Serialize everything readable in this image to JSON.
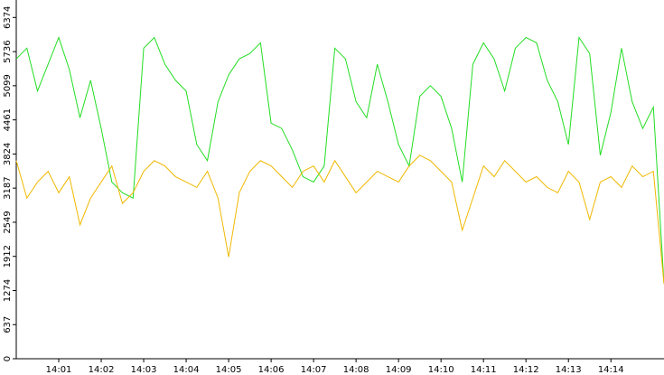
{
  "chart_data": {
    "type": "line",
    "x": [
      0,
      0.25,
      0.5,
      0.75,
      1,
      1.25,
      1.5,
      1.75,
      2,
      2.25,
      2.5,
      2.75,
      3,
      3.25,
      3.5,
      3.75,
      4,
      4.25,
      4.5,
      4.75,
      5,
      5.25,
      5.5,
      5.75,
      6,
      6.25,
      6.5,
      6.75,
      7,
      7.25,
      7.5,
      7.75,
      8,
      8.25,
      8.5,
      8.75,
      9,
      9.25,
      9.5,
      9.75,
      10,
      10.25,
      10.5,
      10.75,
      11,
      11.25,
      11.5,
      11.75,
      12,
      12.25,
      12.5,
      12.75,
      13,
      13.25,
      13.5,
      13.75,
      14,
      14.25,
      14.5,
      14.75,
      15,
      15.25
    ],
    "series": [
      {
        "color": "#22dd22",
        "values": [
          5600,
          5800,
          5000,
          5500,
          6000,
          5400,
          4500,
          5200,
          4300,
          3300,
          3100,
          3000,
          5800,
          6000,
          5500,
          5200,
          5000,
          4000,
          3700,
          4800,
          5300,
          5600,
          5700,
          5900,
          4400,
          4300,
          3900,
          3400,
          3300,
          3600,
          5800,
          5600,
          4800,
          4500,
          5500,
          4800,
          4000,
          3600,
          4900,
          5100,
          4900,
          4300,
          3300,
          5500,
          5900,
          5600,
          5000,
          5800,
          6000,
          5900,
          5200,
          4800,
          4000,
          6000,
          5700,
          3800,
          4600,
          5800,
          4800,
          4300,
          4700,
          1400
        ]
      },
      {
        "color": "#f0b800",
        "values": [
          3700,
          3000,
          3300,
          3500,
          3100,
          3400,
          2500,
          3000,
          3300,
          3600,
          2900,
          3100,
          3500,
          3700,
          3600,
          3400,
          3300,
          3200,
          3500,
          3000,
          1900,
          3100,
          3500,
          3700,
          3600,
          3400,
          3200,
          3500,
          3600,
          3300,
          3700,
          3400,
          3100,
          3300,
          3500,
          3400,
          3300,
          3600,
          3800,
          3700,
          3500,
          3300,
          2400,
          3000,
          3600,
          3400,
          3700,
          3500,
          3300,
          3400,
          3200,
          3100,
          3500,
          3300,
          2600,
          3300,
          3400,
          3200,
          3600,
          3400,
          3500,
          1400
        ]
      }
    ],
    "xlim": [
      0,
      15.25
    ],
    "xticks": [
      {
        "value": 1,
        "label": "14:01"
      },
      {
        "value": 2,
        "label": "14:02"
      },
      {
        "value": 3,
        "label": "14:03"
      },
      {
        "value": 4,
        "label": "14:04"
      },
      {
        "value": 5,
        "label": "14:05"
      },
      {
        "value": 6,
        "label": "14:06"
      },
      {
        "value": 7,
        "label": "14:07"
      },
      {
        "value": 8,
        "label": "14:08"
      },
      {
        "value": 9,
        "label": "14:09"
      },
      {
        "value": 10,
        "label": "14:10"
      },
      {
        "value": 11,
        "label": "14:11"
      },
      {
        "value": 12,
        "label": "14:12"
      },
      {
        "value": 13,
        "label": "14:13"
      },
      {
        "value": 14,
        "label": "14:14"
      }
    ],
    "ylim": [
      0,
      6700
    ],
    "yticks": [
      0,
      637,
      1274,
      1912,
      2549,
      3187,
      3824,
      4461,
      5099,
      5736,
      6374
    ]
  }
}
